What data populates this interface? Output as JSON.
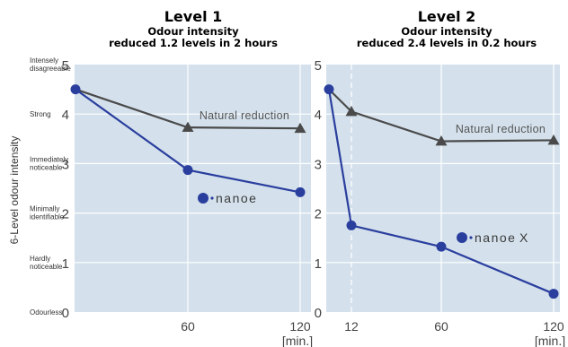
{
  "chart_data": [
    {
      "type": "line",
      "title": "Level 1",
      "subtitle_line1": "Odour intensity",
      "subtitle_line2": "reduced 1.2 levels in 2 hours",
      "ylabel": "6-Level odour intensity",
      "xunit": "[min.]",
      "ylim": [
        0,
        5
      ],
      "xlim": [
        0,
        120
      ],
      "xticks": [
        "60",
        "120"
      ],
      "yticks": [
        "0",
        "1",
        "2",
        "3",
        "4",
        "5"
      ],
      "ycategories": [
        "Odourless",
        "Hardly noticeable",
        "Minimally identifiable",
        "Immediately noticeable",
        "Strong",
        "Intensely disagreeable"
      ],
      "grid": true,
      "series": [
        {
          "name": "Natural reduction",
          "marker": "triangle",
          "color": "#4a4a4a",
          "x": [
            0,
            60,
            120
          ],
          "y": [
            4.5,
            3.73,
            3.71
          ]
        },
        {
          "name": "nanoe",
          "marker": "circle",
          "color": "#2a3e9e",
          "x": [
            0,
            60,
            120
          ],
          "y": [
            4.5,
            2.87,
            2.42
          ]
        }
      ]
    },
    {
      "type": "line",
      "title": "Level 2",
      "subtitle_line1": "Odour intensity",
      "subtitle_line2": "reduced 2.4 levels in 0.2 hours",
      "xunit": "[min.]",
      "ylim": [
        0,
        5
      ],
      "xlim": [
        0,
        120
      ],
      "xticks": [
        "12",
        "60",
        "120"
      ],
      "yticks": [
        "0",
        "1",
        "2",
        "3",
        "4",
        "5"
      ],
      "grid": true,
      "series": [
        {
          "name": "Natural reduction",
          "marker": "triangle",
          "color": "#4a4a4a",
          "x": [
            0,
            12,
            60,
            120
          ],
          "y": [
            4.5,
            4.05,
            3.45,
            3.47
          ]
        },
        {
          "name": "nanoeX",
          "marker": "circle",
          "color": "#2a3e9e",
          "x": [
            0,
            12,
            60,
            120
          ],
          "y": [
            4.5,
            1.75,
            1.32,
            0.37
          ]
        }
      ]
    }
  ]
}
